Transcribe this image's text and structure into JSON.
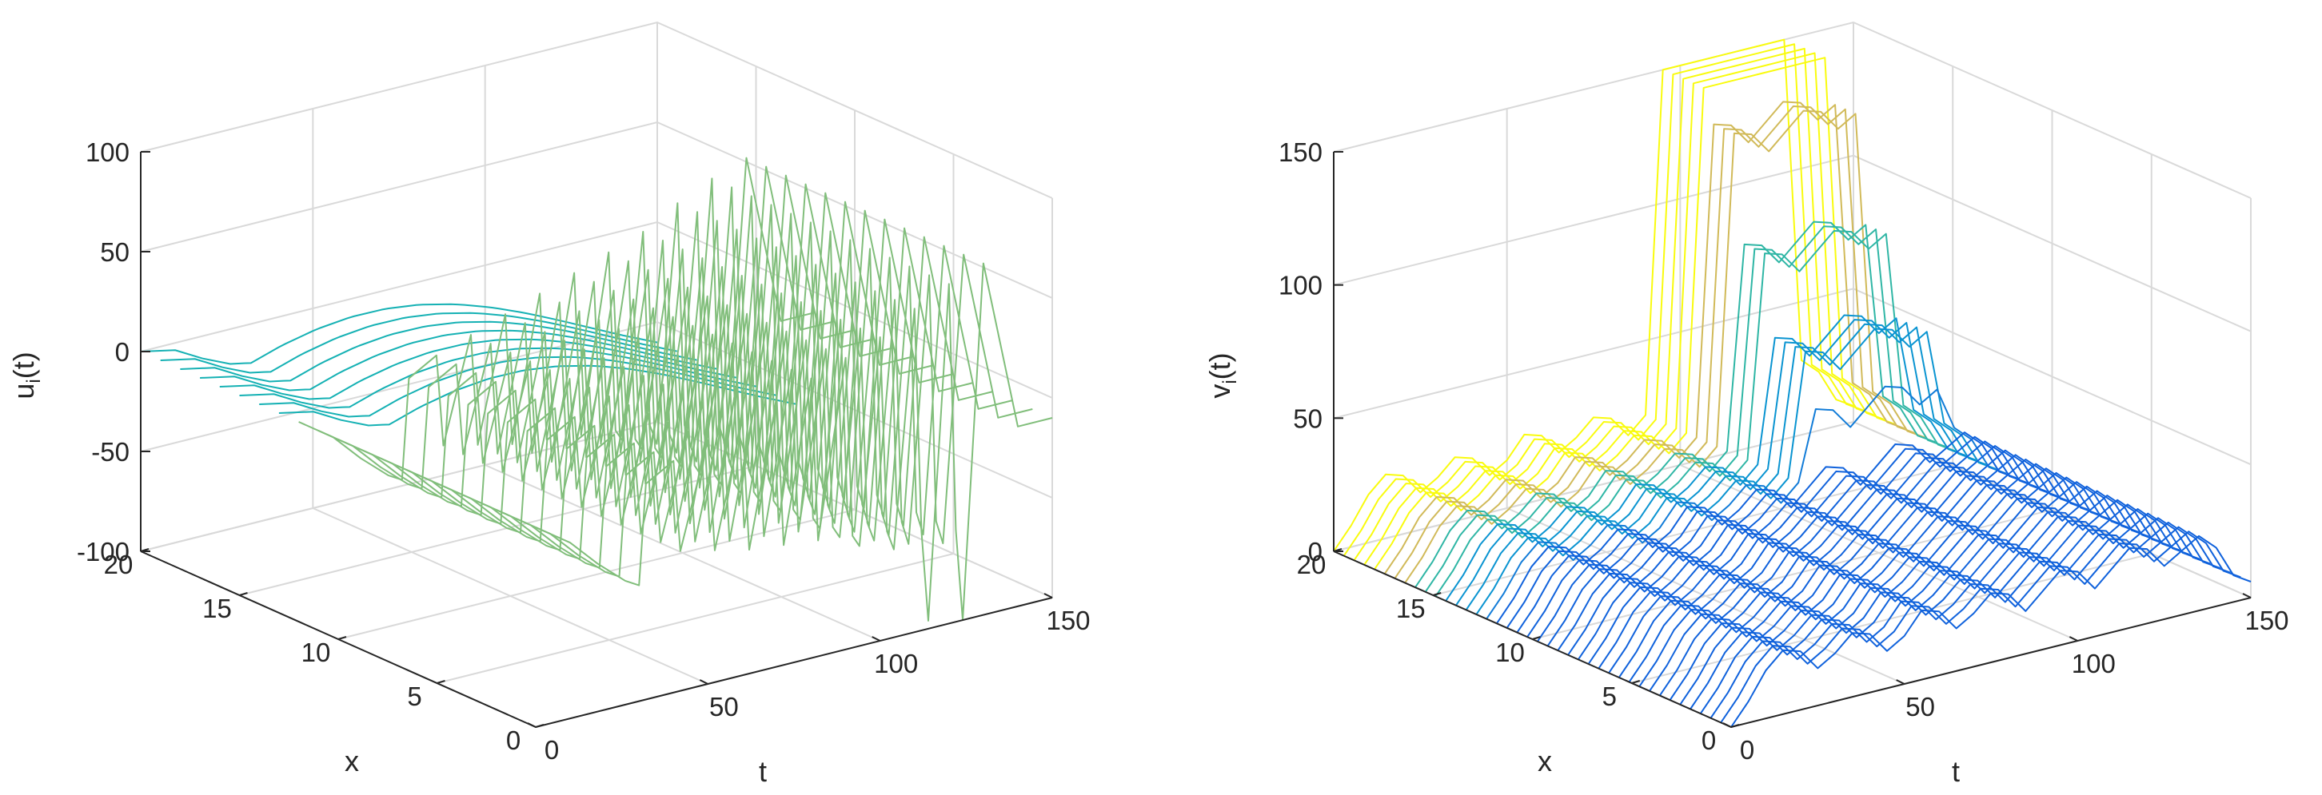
{
  "chart_data": [
    {
      "id": "u",
      "type": "waterfall",
      "zlabel_main": "u",
      "zlabel_sub": "i",
      "zlabel_tail": "(t)",
      "xlabel": "t",
      "ylabel": "x",
      "xlim": [
        0,
        150
      ],
      "ylim": [
        0,
        20
      ],
      "zlim": [
        -100,
        100
      ],
      "xticks": [
        "0",
        "50",
        "100",
        "150"
      ],
      "yticks": [
        "0",
        "5",
        "10",
        "15",
        "20"
      ],
      "zticks": [
        "-100",
        "-50",
        "0",
        "50",
        "100"
      ],
      "grid": true,
      "colormap": "parula",
      "clim": [
        -100,
        100
      ],
      "n_lines": 21,
      "t": [
        0,
        10,
        18,
        26,
        30,
        32,
        40,
        42,
        50,
        52,
        60,
        62,
        70,
        72,
        80,
        82,
        90,
        92,
        94,
        100,
        102,
        104,
        110,
        112,
        114,
        120,
        122,
        124,
        130,
        140,
        150
      ],
      "profiles": {
        "sinusoid": [
          0,
          -12,
          -26,
          -38,
          -42,
          -44,
          -44,
          -44,
          -44,
          -44,
          -44,
          -44,
          -44,
          -44,
          -44,
          -44,
          -44,
          -44,
          -44,
          -44,
          -44,
          -44,
          -44,
          -44,
          -44,
          -44,
          -44,
          -44,
          -44,
          -44,
          -44
        ],
        "pulse_train": [
          0,
          -12,
          -26,
          -38,
          -42,
          8,
          16,
          -30,
          22,
          -34,
          28,
          -38,
          34,
          -40,
          40,
          -42,
          46,
          -44,
          -50,
          52,
          -46,
          -56,
          62,
          -50,
          -62,
          70,
          -54,
          -66,
          76,
          -10,
          -10
        ],
        "deep_spike": [
          0,
          -12,
          -26,
          -38,
          -42,
          8,
          16,
          -30,
          22,
          -34,
          28,
          -38,
          34,
          -40,
          40,
          -42,
          46,
          -44,
          -50,
          52,
          -46,
          -56,
          62,
          -50,
          -96,
          70,
          -54,
          -100,
          76,
          -10,
          -10
        ]
      },
      "highlight_lines": [
        {
          "x": 0,
          "t_end": 130,
          "values": [
            0,
            -6,
            -12,
            -18,
            -22,
            -24,
            -26,
            -28,
            -30,
            -32,
            -34,
            -36,
            -38,
            -40,
            -42,
            -44,
            -46,
            -48,
            -50,
            -52,
            -54,
            -56,
            -58,
            -60,
            -62,
            -66,
            -70,
            -100,
            -100,
            -100,
            -100
          ]
        }
      ]
    },
    {
      "id": "v",
      "type": "waterfall",
      "zlabel_main": "v",
      "zlabel_sub": "i",
      "zlabel_tail": "(t)",
      "xlabel": "t",
      "ylabel": "x",
      "xlim": [
        0,
        150
      ],
      "ylim": [
        0,
        20
      ],
      "zlim": [
        0,
        150
      ],
      "xticks": [
        "0",
        "50",
        "100",
        "150"
      ],
      "yticks": [
        "0",
        "5",
        "10",
        "15",
        "20"
      ],
      "zticks": [
        "0",
        "50",
        "100",
        "150"
      ],
      "grid": true,
      "colormap": "parula",
      "clim": [
        0,
        170
      ],
      "n_lines": 40,
      "t": [
        0,
        5,
        10,
        15,
        20,
        25,
        30,
        35,
        40,
        45,
        50,
        55,
        60,
        65,
        70,
        75,
        80,
        85,
        90,
        95,
        100,
        105,
        110,
        115,
        120,
        125,
        130,
        135,
        140,
        145,
        150
      ],
      "base_wave": [
        0,
        8,
        18,
        24,
        22,
        14,
        18,
        24,
        22,
        14,
        18,
        26,
        24,
        16,
        20,
        26,
        24,
        16,
        22,
        28,
        26,
        18,
        24,
        30,
        28,
        20,
        24,
        28,
        22,
        10,
        6
      ],
      "ridge": {
        "x_start": 12,
        "x_end": 20,
        "t_start": 95,
        "t_peak": 105,
        "t_drop": 130,
        "height": [
          20,
          40,
          70,
          110,
          150,
          168
        ]
      }
    }
  ]
}
